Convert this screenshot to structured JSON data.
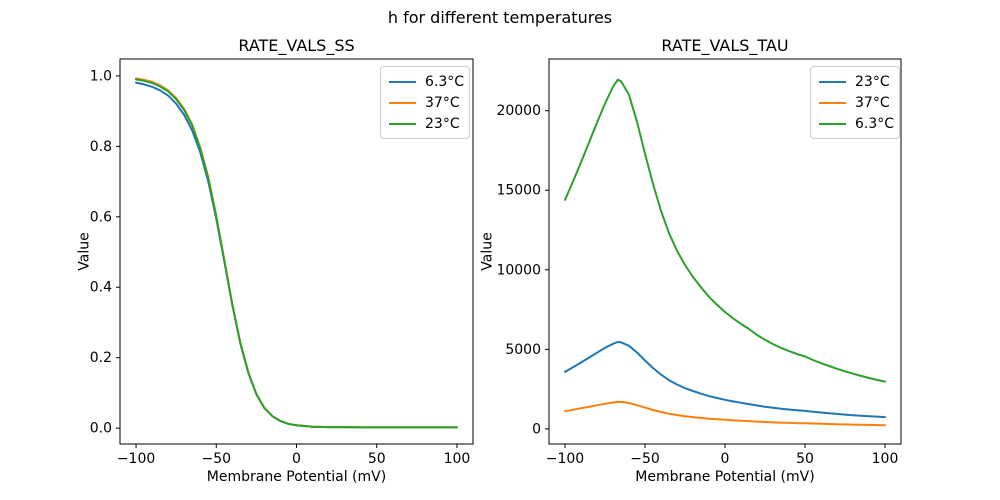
{
  "figure": {
    "title": "h for different temperatures"
  },
  "chart_data": [
    {
      "type": "line",
      "title": "RATE_VALS_SS",
      "xlabel": "Membrane Potential (mV)",
      "ylabel": "Value",
      "legend_position": "upper right",
      "grid": false,
      "xlim": [
        -110,
        110
      ],
      "ylim": [
        -0.045,
        1.048
      ],
      "xticks": [
        -100,
        -50,
        0,
        50,
        100
      ],
      "xtick_labels": [
        "−100",
        "−50",
        "0",
        "50",
        "100"
      ],
      "yticks": [
        0.0,
        0.2,
        0.4,
        0.6,
        0.8,
        1.0
      ],
      "ytick_labels": [
        "0.0",
        "0.2",
        "0.4",
        "0.6",
        "0.8",
        "1.0"
      ],
      "x": [
        -100,
        -95,
        -90,
        -85,
        -80,
        -75,
        -70,
        -65,
        -60,
        -55,
        -50,
        -45,
        -40,
        -35,
        -30,
        -25,
        -20,
        -15,
        -10,
        -5,
        0,
        10,
        20,
        30,
        40,
        50,
        60,
        70,
        80,
        90,
        100
      ],
      "series": [
        {
          "name": "6.3°C",
          "color": "#1f77b4",
          "values": [
            0.981,
            0.976,
            0.969,
            0.959,
            0.944,
            0.921,
            0.889,
            0.845,
            0.783,
            0.7,
            0.594,
            0.473,
            0.35,
            0.241,
            0.156,
            0.096,
            0.057,
            0.034,
            0.02,
            0.012,
            0.008,
            0.004,
            0.003,
            0.003,
            0.002,
            0.002,
            0.002,
            0.002,
            0.002,
            0.002,
            0.002
          ]
        },
        {
          "name": "37°C",
          "color": "#ff7f0e",
          "values": [
            0.993,
            0.989,
            0.983,
            0.973,
            0.959,
            0.937,
            0.906,
            0.862,
            0.797,
            0.712,
            0.602,
            0.477,
            0.352,
            0.242,
            0.157,
            0.096,
            0.057,
            0.034,
            0.02,
            0.012,
            0.008,
            0.004,
            0.003,
            0.003,
            0.002,
            0.002,
            0.002,
            0.002,
            0.002,
            0.002,
            0.002
          ]
        },
        {
          "name": "23°C",
          "color": "#2ca02c",
          "values": [
            0.99,
            0.986,
            0.98,
            0.97,
            0.956,
            0.934,
            0.903,
            0.859,
            0.794,
            0.709,
            0.6,
            0.476,
            0.351,
            0.242,
            0.157,
            0.096,
            0.057,
            0.034,
            0.02,
            0.012,
            0.008,
            0.004,
            0.003,
            0.003,
            0.002,
            0.002,
            0.002,
            0.002,
            0.002,
            0.002,
            0.002
          ]
        }
      ]
    },
    {
      "type": "line",
      "title": "RATE_VALS_TAU",
      "xlabel": "Membrane Potential (mV)",
      "ylabel": "Value",
      "legend_position": "upper right",
      "grid": false,
      "xlim": [
        -110,
        110
      ],
      "ylim": [
        -950,
        23250
      ],
      "xticks": [
        -100,
        -50,
        0,
        50,
        100
      ],
      "xtick_labels": [
        "−100",
        "−50",
        "0",
        "50",
        "100"
      ],
      "yticks": [
        0,
        5000,
        10000,
        15000,
        20000
      ],
      "ytick_labels": [
        "0",
        "5000",
        "10000",
        "15000",
        "20000"
      ],
      "x": [
        -100,
        -95,
        -90,
        -85,
        -80,
        -75,
        -70,
        -67,
        -65,
        -60,
        -55,
        -50,
        -45,
        -40,
        -35,
        -30,
        -25,
        -20,
        -15,
        -10,
        -5,
        0,
        5,
        10,
        15,
        20,
        25,
        30,
        35,
        40,
        45,
        50,
        55,
        60,
        65,
        70,
        75,
        80,
        85,
        90,
        95,
        100
      ],
      "series": [
        {
          "name": "23°C",
          "color": "#1f77b4",
          "values": [
            3580,
            3870,
            4170,
            4480,
            4790,
            5090,
            5350,
            5460,
            5440,
            5220,
            4800,
            4300,
            3830,
            3410,
            3060,
            2790,
            2560,
            2380,
            2210,
            2060,
            1940,
            1830,
            1730,
            1640,
            1560,
            1470,
            1390,
            1330,
            1270,
            1220,
            1170,
            1130,
            1080,
            1030,
            980,
            940,
            900,
            860,
            830,
            800,
            770,
            740
          ]
        },
        {
          "name": "37°C",
          "color": "#ff7f0e",
          "values": [
            1110,
            1200,
            1300,
            1390,
            1490,
            1580,
            1660,
            1700,
            1690,
            1630,
            1490,
            1340,
            1190,
            1060,
            950,
            870,
            800,
            740,
            690,
            640,
            600,
            570,
            540,
            510,
            490,
            460,
            430,
            410,
            390,
            380,
            360,
            350,
            340,
            320,
            310,
            290,
            280,
            270,
            260,
            250,
            240,
            230
          ]
        },
        {
          "name": "6.3°C",
          "color": "#2ca02c",
          "values": [
            14400,
            15550,
            16750,
            18000,
            19250,
            20450,
            21500,
            21950,
            21850,
            21000,
            19300,
            17300,
            15400,
            13700,
            12300,
            11200,
            10300,
            9550,
            8900,
            8300,
            7800,
            7350,
            6950,
            6600,
            6280,
            5900,
            5600,
            5330,
            5090,
            4890,
            4710,
            4550,
            4330,
            4130,
            3950,
            3780,
            3620,
            3470,
            3330,
            3200,
            3080,
            2970
          ]
        }
      ]
    }
  ]
}
